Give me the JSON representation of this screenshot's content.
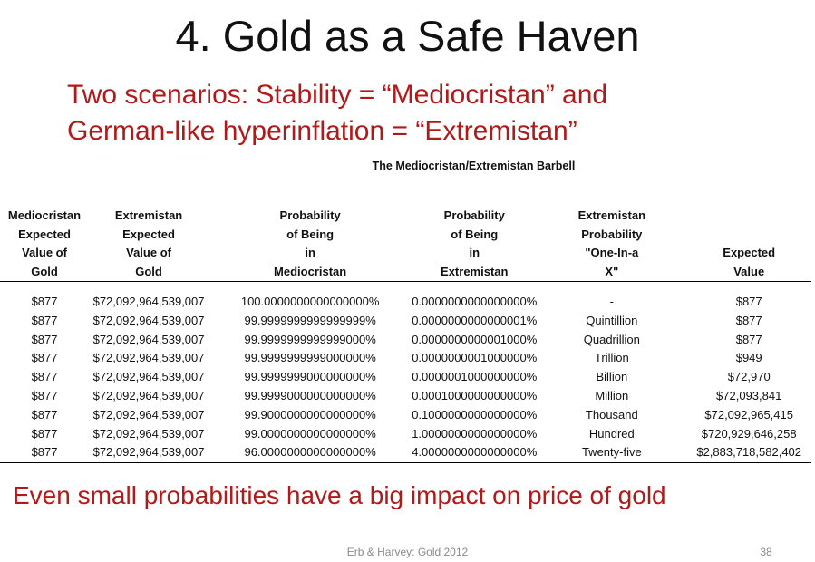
{
  "slide": {
    "title": "4. Gold as a Safe Haven",
    "subtitle_line1": "Two scenarios: Stability = “Mediocristan” and",
    "subtitle_line2": "German-like hyperinflation = “Extremistan”",
    "table_title": "The Mediocristan/Extremistan Barbell",
    "footnote": "Even small probabilities have a big impact on price of gold",
    "footer": "Erb & Harvey: Gold 2012",
    "page_number": "38"
  },
  "table": {
    "headers": [
      [
        "Mediocristan",
        "Expected",
        "Value of",
        "Gold"
      ],
      [
        "Extremistan",
        "Expected",
        "Value of",
        "Gold"
      ],
      [
        "Probability",
        "of Being",
        "in",
        "Mediocristan"
      ],
      [
        "Probability",
        "of Being",
        "in",
        "Extremistan"
      ],
      [
        "Extremistan",
        "Probability",
        "\"One-In-a",
        "X\""
      ],
      [
        "",
        "",
        "Expected",
        "Value"
      ]
    ],
    "rows": [
      [
        "$877",
        "$72,092,964,539,007",
        "100.0000000000000000%",
        "0.0000000000000000%",
        "-",
        "$877"
      ],
      [
        "$877",
        "$72,092,964,539,007",
        "99.9999999999999999%",
        "0.0000000000000001%",
        "Quintillion",
        "$877"
      ],
      [
        "$877",
        "$72,092,964,539,007",
        "99.9999999999999000%",
        "0.0000000000001000%",
        "Quadrillion",
        "$877"
      ],
      [
        "$877",
        "$72,092,964,539,007",
        "99.9999999999000000%",
        "0.0000000001000000%",
        "Trillion",
        "$949"
      ],
      [
        "$877",
        "$72,092,964,539,007",
        "99.9999999000000000%",
        "0.0000001000000000%",
        "Billion",
        "$72,970"
      ],
      [
        "$877",
        "$72,092,964,539,007",
        "99.9999000000000000%",
        "0.0001000000000000%",
        "Million",
        "$72,093,841"
      ],
      [
        "$877",
        "$72,092,964,539,007",
        "99.9000000000000000%",
        "0.1000000000000000%",
        "Thousand",
        "$72,092,965,415"
      ],
      [
        "$877",
        "$72,092,964,539,007",
        "99.0000000000000000%",
        "1.0000000000000000%",
        "Hundred",
        "$720,929,646,258"
      ],
      [
        "$877",
        "$72,092,964,539,007",
        "96.0000000000000000%",
        "4.0000000000000000%",
        "Twenty-five",
        "$2,883,718,582,402"
      ]
    ]
  }
}
